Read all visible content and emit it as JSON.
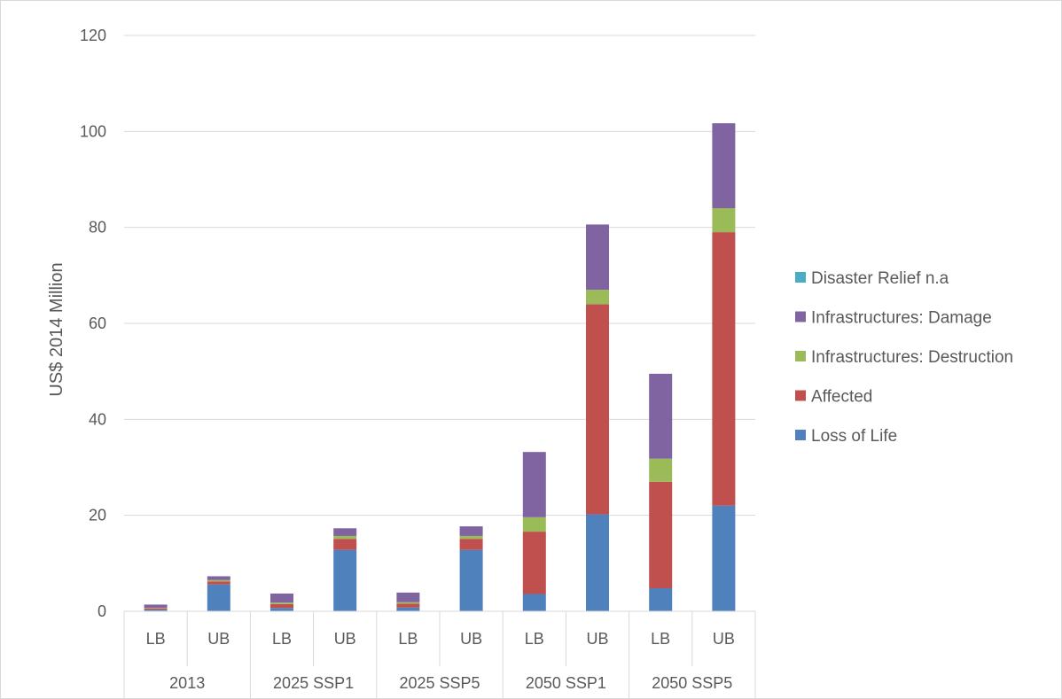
{
  "chart_data": {
    "type": "bar",
    "stacked": true,
    "ylabel": "US$ 2014 Million",
    "ylim": [
      0,
      120
    ],
    "yticks": [
      0,
      20,
      40,
      60,
      80,
      100,
      120
    ],
    "grid": true,
    "legend_position": "right",
    "groups": [
      "2013",
      "2025 SSP1",
      "2025 SSP5",
      "2050 SSP1",
      "2050 SSP5"
    ],
    "categories": [
      "LB",
      "UB",
      "LB",
      "UB",
      "LB",
      "UB",
      "LB",
      "UB",
      "LB",
      "UB"
    ],
    "series": [
      {
        "name": "Loss of Life",
        "color": "#4f81bd",
        "values": [
          0.3,
          5.6,
          0.7,
          12.8,
          0.8,
          12.8,
          3.6,
          20.2,
          4.8,
          22.0
        ]
      },
      {
        "name": "Affected",
        "color": "#c0504d",
        "values": [
          0.3,
          0.6,
          0.8,
          2.3,
          0.8,
          2.3,
          13.0,
          43.8,
          22.2,
          57.0
        ]
      },
      {
        "name": "Infrastructures: Destruction",
        "color": "#9bbb59",
        "values": [
          0.1,
          0.3,
          0.3,
          0.6,
          0.3,
          0.6,
          3.0,
          3.0,
          4.8,
          5.0
        ]
      },
      {
        "name": "Infrastructures: Damage",
        "color": "#8064a2",
        "values": [
          0.7,
          0.8,
          1.9,
          1.6,
          2.0,
          2.0,
          13.6,
          13.6,
          17.7,
          17.7
        ]
      },
      {
        "name": "Disaster Relief n.a",
        "color": "#4bacc6",
        "values": [
          0,
          0,
          0,
          0,
          0,
          0,
          0,
          0,
          0,
          0
        ]
      }
    ]
  }
}
